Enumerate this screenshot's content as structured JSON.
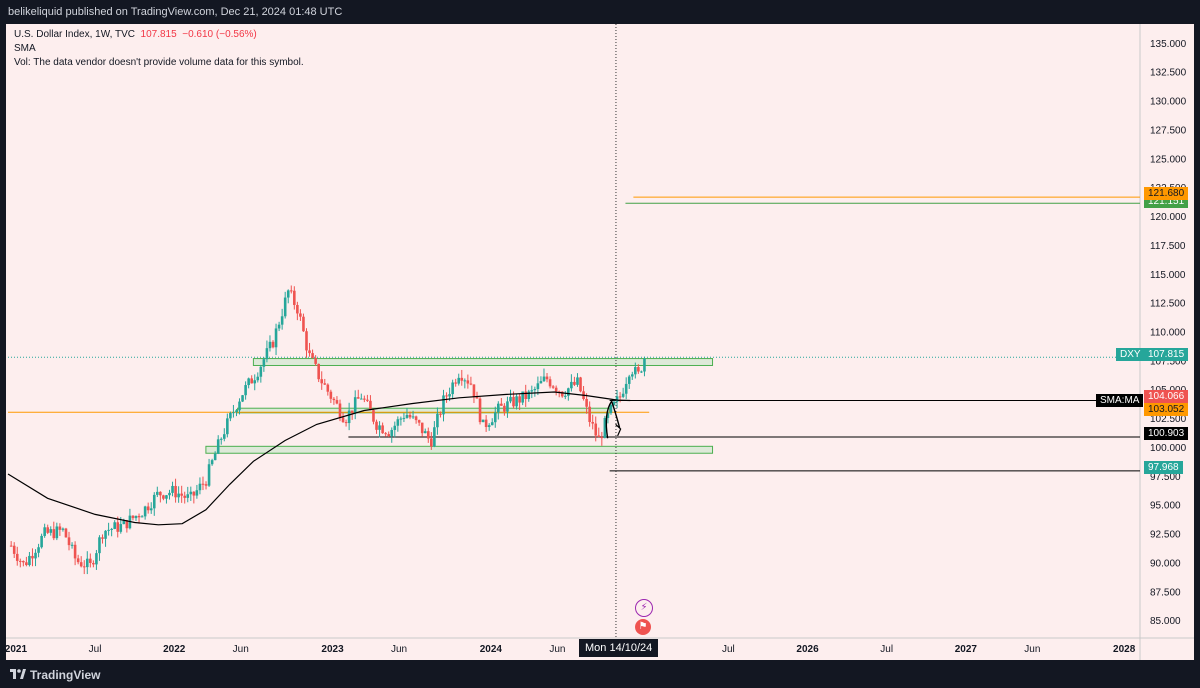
{
  "header": {
    "publisher_line": "belikeliquid published on TradingView.com, Dec 21, 2024 01:48 UTC"
  },
  "legend": {
    "symbol_line": "U.S. Dollar Index, 1W, TVC",
    "last": "107.815",
    "change": "−0.610 (−0.56%)",
    "indicator": "SMA",
    "volume_note": "Vol: The data vendor doesn't provide volume data for this symbol."
  },
  "footer": {
    "brand": "TradingView"
  },
  "crosshair": {
    "time_label": "Mon 14/10/24"
  },
  "colors": {
    "background": "#fdeeee",
    "up": "#26a69a",
    "down": "#ef5350",
    "zone_fill": "#c8e6c9",
    "zone_stroke": "#4caf50",
    "orange": "#ff9800",
    "green": "#43a047",
    "black": "#000000"
  },
  "price_labels": {
    "dxy_name": "DXY",
    "dxy_value": "107.815",
    "sma_name": "SMA:MA",
    "sma_value": "104.066",
    "level_103": "103.052",
    "level_121_orange": "121.680",
    "level_121_green": "121.151",
    "level_100": "100.903",
    "level_97": "97.968"
  },
  "chart_data": {
    "type": "candlestick",
    "symbol": "DXY",
    "timeframe": "1W",
    "y_ticks": [
      135,
      132.5,
      130,
      127.5,
      125,
      122.5,
      120,
      117.5,
      115,
      112.5,
      110,
      107.5,
      105,
      102.5,
      100,
      97.5,
      95,
      92.5,
      90,
      87.5,
      85
    ],
    "y_tick_labels": [
      "135.000",
      "132.500",
      "130.000",
      "127.500",
      "125.000",
      "122.500",
      "120.000",
      "117.500",
      "115.000",
      "112.500",
      "110.000",
      "107.500",
      "105.000",
      "102.500",
      "100.000",
      "97.500",
      "95.000",
      "92.500",
      "90.000",
      "87.500",
      "85.000"
    ],
    "x_ticks": [
      {
        "label": "2021",
        "t": 2021.0,
        "bold": true
      },
      {
        "label": "Jul",
        "t": 2021.5,
        "bold": false
      },
      {
        "label": "2022",
        "t": 2022.0,
        "bold": true
      },
      {
        "label": "Jun",
        "t": 2022.42,
        "bold": false
      },
      {
        "label": "2023",
        "t": 2023.0,
        "bold": true
      },
      {
        "label": "Jun",
        "t": 2023.42,
        "bold": false
      },
      {
        "label": "2024",
        "t": 2024.0,
        "bold": true
      },
      {
        "label": "Jun",
        "t": 2024.42,
        "bold": false
      },
      {
        "label": "Jul",
        "t": 2025.5,
        "bold": false
      },
      {
        "label": "2026",
        "t": 2026.0,
        "bold": true
      },
      {
        "label": "Jul",
        "t": 2026.5,
        "bold": false
      },
      {
        "label": "2027",
        "t": 2027.0,
        "bold": true
      },
      {
        "label": "Jun",
        "t": 2027.42,
        "bold": false
      },
      {
        "label": "2028",
        "t": 2028.0,
        "bold": true
      }
    ],
    "ylim": [
      83.5,
      136.5
    ],
    "xlim": [
      2020.95,
      2028.1
    ],
    "anchors": [
      [
        2020.97,
        91.5
      ],
      [
        2021.05,
        89.8
      ],
      [
        2021.18,
        92.5
      ],
      [
        2021.3,
        92.8
      ],
      [
        2021.38,
        90.2
      ],
      [
        2021.47,
        89.7
      ],
      [
        2021.55,
        92.8
      ],
      [
        2021.67,
        93.2
      ],
      [
        2021.8,
        94.5
      ],
      [
        2021.9,
        96.0
      ],
      [
        2022.0,
        96.2
      ],
      [
        2022.1,
        95.5
      ],
      [
        2022.2,
        97.2
      ],
      [
        2022.3,
        101.0
      ],
      [
        2022.42,
        104.5
      ],
      [
        2022.52,
        106.5
      ],
      [
        2022.62,
        109.0
      ],
      [
        2022.72,
        113.5
      ],
      [
        2022.78,
        112.0
      ],
      [
        2022.85,
        108.0
      ],
      [
        2022.92,
        106.0
      ],
      [
        2023.0,
        104.2
      ],
      [
        2023.08,
        102.5
      ],
      [
        2023.18,
        104.5
      ],
      [
        2023.28,
        102.0
      ],
      [
        2023.36,
        101.4
      ],
      [
        2023.46,
        103.0
      ],
      [
        2023.55,
        101.8
      ],
      [
        2023.62,
        100.5
      ],
      [
        2023.7,
        104.0
      ],
      [
        2023.8,
        106.6
      ],
      [
        2023.88,
        105.5
      ],
      [
        2023.95,
        101.8
      ],
      [
        2024.05,
        103.3
      ],
      [
        2024.15,
        104.0
      ],
      [
        2024.25,
        104.6
      ],
      [
        2024.35,
        106.0
      ],
      [
        2024.45,
        104.8
      ],
      [
        2024.55,
        105.6
      ],
      [
        2024.62,
        102.5
      ],
      [
        2024.68,
        100.6
      ],
      [
        2024.75,
        103.0
      ],
      [
        2024.82,
        104.5
      ],
      [
        2024.88,
        107.0
      ],
      [
        2024.93,
        106.2
      ],
      [
        2024.97,
        107.8
      ]
    ],
    "sma_anchors": [
      [
        2020.95,
        97.7
      ],
      [
        2021.2,
        95.6
      ],
      [
        2021.5,
        94.2
      ],
      [
        2021.75,
        93.5
      ],
      [
        2021.9,
        93.3
      ],
      [
        2022.05,
        93.4
      ],
      [
        2022.2,
        94.6
      ],
      [
        2022.35,
        96.8
      ],
      [
        2022.5,
        98.8
      ],
      [
        2022.7,
        100.6
      ],
      [
        2022.9,
        102.0
      ],
      [
        2023.2,
        103.2
      ],
      [
        2023.5,
        103.8
      ],
      [
        2023.8,
        104.3
      ],
      [
        2024.1,
        104.6
      ],
      [
        2024.4,
        104.8
      ],
      [
        2024.6,
        104.5
      ],
      [
        2024.8,
        104.1
      ],
      [
        2024.88,
        104.066
      ]
    ],
    "zones": [
      {
        "t0": 2022.5,
        "t1": 2025.4,
        "p0": 107.1,
        "p1": 107.7
      },
      {
        "t0": 2022.4,
        "t1": 2024.75,
        "p0": 103.0,
        "p1": 103.4
      },
      {
        "t0": 2022.2,
        "t1": 2025.4,
        "p0": 99.5,
        "p1": 100.1
      }
    ],
    "hlines": [
      {
        "t0": 2020.95,
        "t1": 2025.0,
        "p": 103.052,
        "color": "orange"
      },
      {
        "t0": 2024.9,
        "t1": 2028.2,
        "p": 121.68,
        "color": "orange"
      },
      {
        "t0": 2024.85,
        "t1": 2028.2,
        "p": 121.151,
        "color": "green"
      },
      {
        "t0": 2023.1,
        "t1": 2028.2,
        "p": 100.903,
        "color": "black"
      },
      {
        "t0": 2024.75,
        "t1": 2028.2,
        "p": 97.968,
        "color": "black"
      },
      {
        "t0": 2024.75,
        "t1": 2028.2,
        "p": 104.066,
        "color": "black"
      }
    ],
    "crosshair_t": 2024.79,
    "last_price": 107.815
  }
}
